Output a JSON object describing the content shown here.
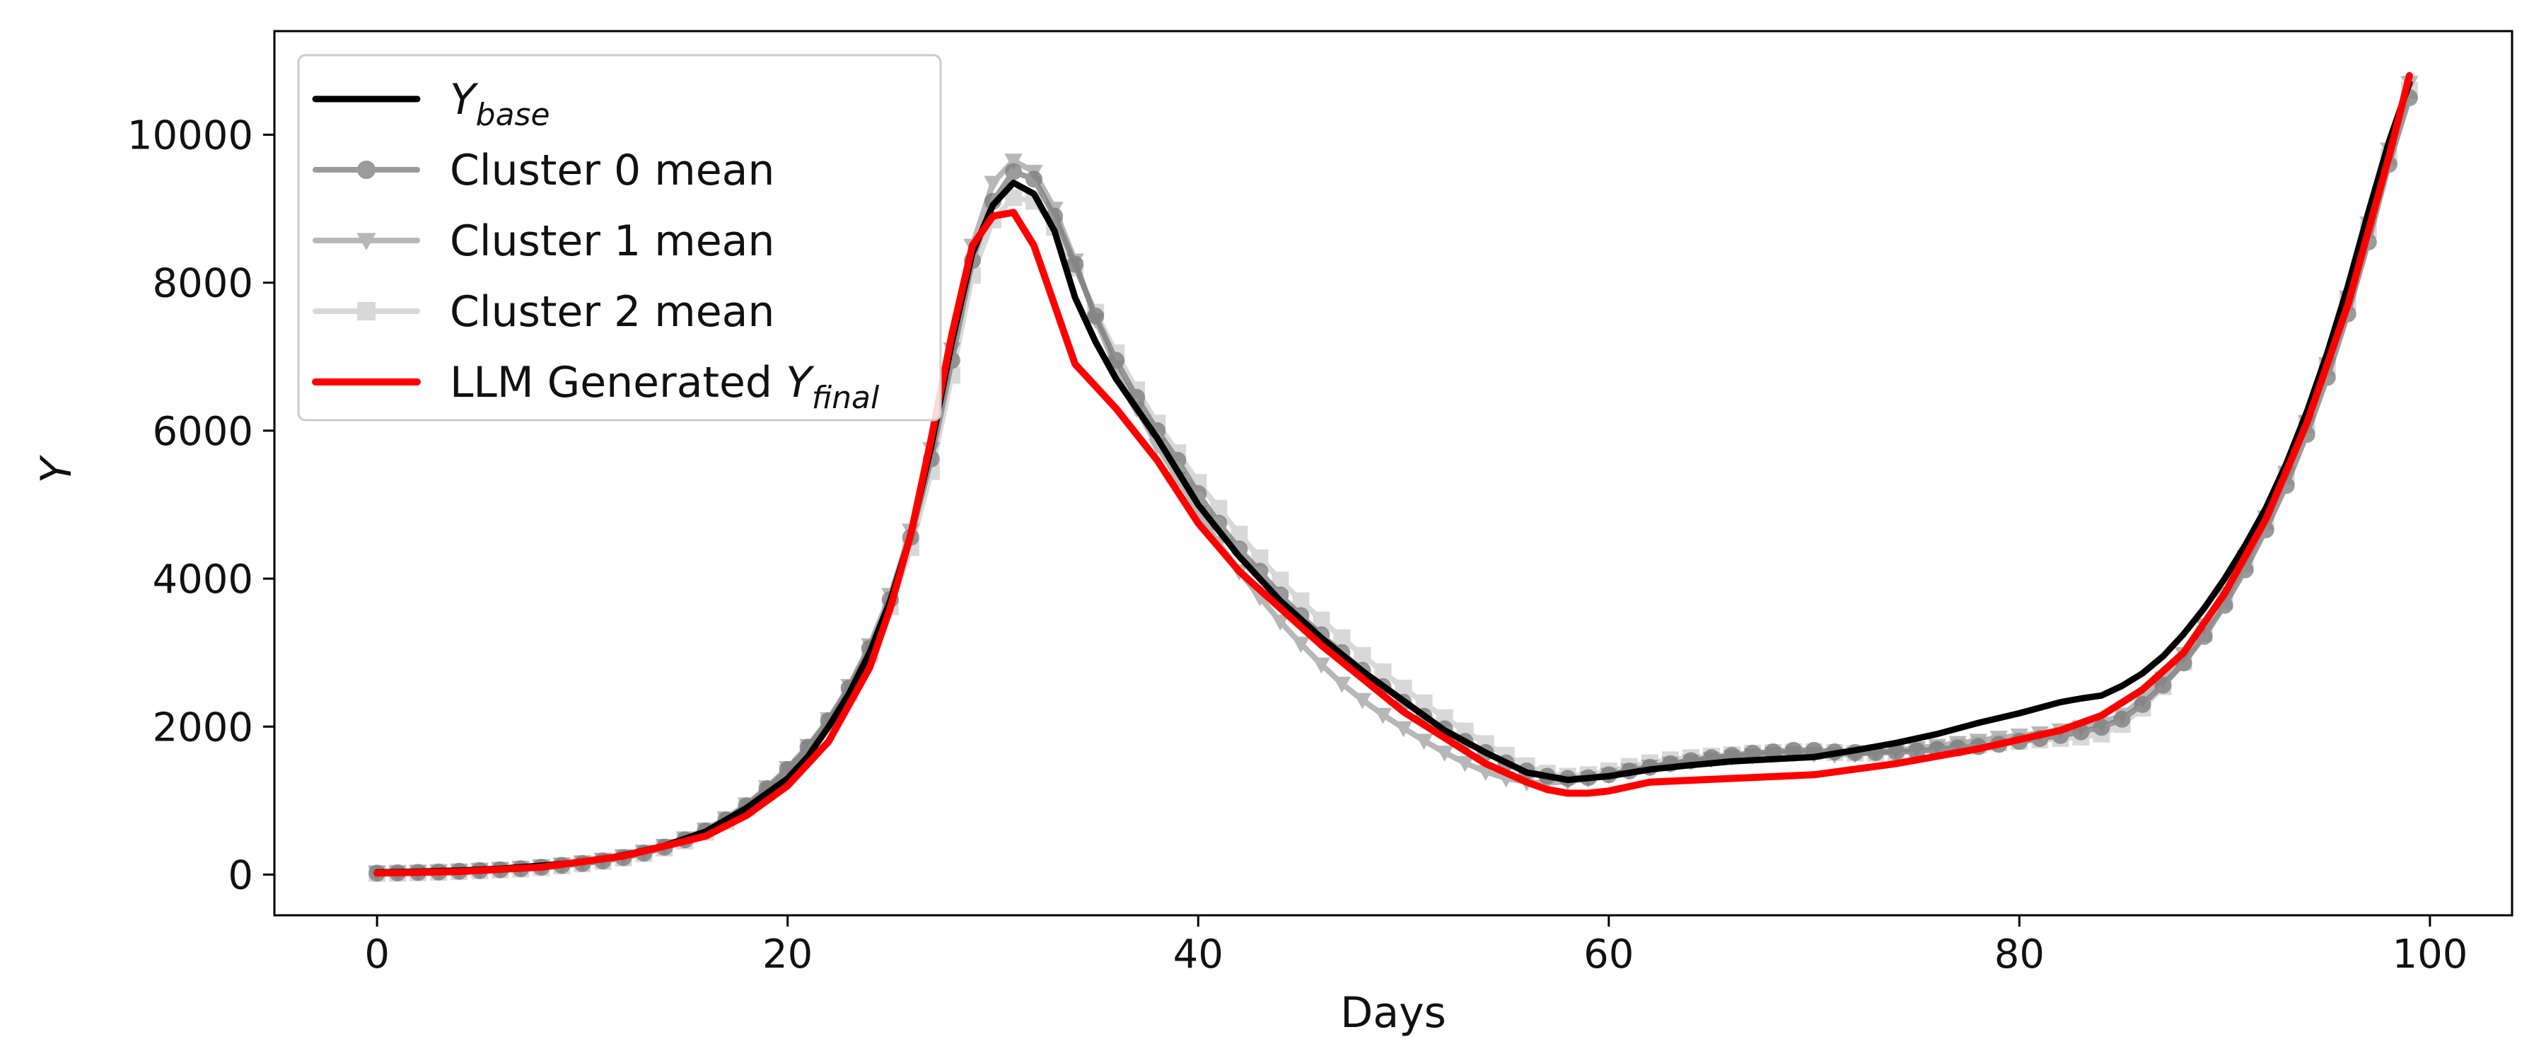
{
  "chart_data": {
    "type": "line",
    "title": "",
    "xlabel": "Days",
    "ylabel": "Y",
    "xlim": [
      -5,
      104
    ],
    "ylim": [
      -550,
      11400
    ],
    "xticks": [
      0,
      20,
      40,
      60,
      80,
      100
    ],
    "yticks": [
      0,
      2000,
      4000,
      6000,
      8000,
      10000
    ],
    "grid": false,
    "legend_position": "top-left",
    "colors": {
      "base": "#000000",
      "cluster0": "#7a7a7a",
      "cluster1": "#9a9a9a",
      "cluster2": "#c4c4c4",
      "llm": "#ff0000"
    },
    "legend": [
      {
        "key": "base",
        "main": "Y",
        "sub": "base"
      },
      {
        "key": "cluster0",
        "main": "Cluster 0 mean",
        "sub": ""
      },
      {
        "key": "cluster1",
        "main": "Cluster 1 mean",
        "sub": ""
      },
      {
        "key": "cluster2",
        "main": "Cluster 2 mean",
        "sub": ""
      },
      {
        "key": "llm",
        "main": "LLM Generated Y",
        "sub": "final"
      }
    ],
    "series": [
      {
        "key": "base",
        "name": "Y_base",
        "marker": "none",
        "x": [
          0,
          2,
          4,
          6,
          8,
          10,
          12,
          14,
          16,
          18,
          20,
          21,
          22,
          23,
          24,
          25,
          26,
          27,
          28,
          29,
          30,
          31,
          32,
          33,
          34,
          35,
          36,
          37,
          38,
          39,
          40,
          42,
          44,
          46,
          48,
          50,
          52,
          54,
          56,
          58,
          60,
          62,
          64,
          66,
          68,
          70,
          72,
          74,
          76,
          78,
          80,
          82,
          83,
          84,
          85,
          86,
          87,
          88,
          89,
          90,
          91,
          92,
          93,
          94,
          95,
          96,
          97,
          98,
          99
        ],
        "y": [
          30,
          40,
          55,
          80,
          120,
          170,
          260,
          390,
          580,
          900,
          1300,
          1600,
          2000,
          2450,
          3000,
          3700,
          4600,
          5800,
          7200,
          8400,
          9050,
          9350,
          9200,
          8700,
          7800,
          7200,
          6700,
          6300,
          5900,
          5450,
          5000,
          4300,
          3700,
          3200,
          2750,
          2350,
          1950,
          1650,
          1380,
          1280,
          1330,
          1420,
          1480,
          1530,
          1560,
          1590,
          1680,
          1780,
          1900,
          2050,
          2180,
          2330,
          2380,
          2420,
          2550,
          2720,
          2950,
          3250,
          3600,
          4000,
          4450,
          4950,
          5550,
          6250,
          7050,
          7950,
          8950,
          9900,
          10700
        ]
      },
      {
        "key": "cluster0",
        "name": "Cluster 0 mean",
        "marker": "circle",
        "x": [
          0,
          1,
          2,
          3,
          4,
          5,
          6,
          7,
          8,
          9,
          10,
          11,
          12,
          13,
          14,
          15,
          16,
          17,
          18,
          19,
          20,
          21,
          22,
          23,
          24,
          25,
          26,
          27,
          28,
          29,
          30,
          31,
          32,
          33,
          34,
          35,
          36,
          37,
          38,
          39,
          40,
          41,
          42,
          43,
          44,
          45,
          46,
          47,
          48,
          49,
          50,
          51,
          52,
          53,
          54,
          55,
          56,
          57,
          58,
          59,
          60,
          61,
          62,
          63,
          64,
          65,
          66,
          67,
          68,
          69,
          70,
          71,
          72,
          73,
          74,
          75,
          76,
          77,
          78,
          79,
          80,
          81,
          82,
          83,
          84,
          85,
          86,
          87,
          88,
          89,
          90,
          91,
          92,
          93,
          94,
          95,
          96,
          97,
          98,
          99
        ],
        "y": [
          20,
          24,
          30,
          36,
          45,
          55,
          66,
          80,
          100,
          125,
          150,
          185,
          230,
          290,
          370,
          470,
          590,
          740,
          930,
          1160,
          1420,
          1720,
          2080,
          2520,
          3060,
          3720,
          4560,
          5620,
          6950,
          8300,
          9100,
          9500,
          9400,
          8900,
          8250,
          7550,
          6950,
          6450,
          6000,
          5600,
          5150,
          4750,
          4400,
          4100,
          3780,
          3500,
          3240,
          3000,
          2760,
          2540,
          2330,
          2140,
          1970,
          1800,
          1650,
          1510,
          1400,
          1330,
          1300,
          1310,
          1350,
          1400,
          1450,
          1500,
          1540,
          1580,
          1610,
          1640,
          1660,
          1680,
          1680,
          1660,
          1650,
          1650,
          1660,
          1670,
          1690,
          1710,
          1730,
          1760,
          1800,
          1840,
          1880,
          1930,
          1990,
          2100,
          2300,
          2560,
          2860,
          3220,
          3640,
          4120,
          4660,
          5260,
          5950,
          6720,
          7580,
          8550,
          9600,
          10500
        ]
      },
      {
        "key": "cluster1",
        "name": "Cluster 1 mean",
        "marker": "triangle",
        "x": [
          0,
          1,
          2,
          3,
          4,
          5,
          6,
          7,
          8,
          9,
          10,
          11,
          12,
          13,
          14,
          15,
          16,
          17,
          18,
          19,
          20,
          21,
          22,
          23,
          24,
          25,
          26,
          27,
          28,
          29,
          30,
          31,
          32,
          33,
          34,
          35,
          36,
          37,
          38,
          39,
          40,
          41,
          42,
          43,
          44,
          45,
          46,
          47,
          48,
          49,
          50,
          51,
          52,
          53,
          54,
          55,
          56,
          57,
          58,
          59,
          60,
          61,
          62,
          63,
          64,
          65,
          66,
          67,
          68,
          69,
          70,
          71,
          72,
          73,
          74,
          75,
          76,
          77,
          78,
          79,
          80,
          81,
          82,
          83,
          84,
          85,
          86,
          87,
          88,
          89,
          90,
          91,
          92,
          93,
          94,
          95,
          96,
          97,
          98,
          99
        ],
        "y": [
          25,
          28,
          34,
          40,
          50,
          60,
          72,
          88,
          110,
          135,
          165,
          200,
          250,
          310,
          390,
          490,
          610,
          760,
          950,
          1180,
          1440,
          1740,
          2100,
          2550,
          3100,
          3780,
          4650,
          5750,
          7100,
          8500,
          9350,
          9650,
          9500,
          9000,
          8300,
          7500,
          6850,
          6300,
          5800,
          5350,
          4900,
          4480,
          4100,
          3750,
          3420,
          3120,
          2840,
          2580,
          2360,
          2160,
          1980,
          1810,
          1650,
          1510,
          1390,
          1300,
          1250,
          1240,
          1260,
          1300,
          1350,
          1410,
          1460,
          1500,
          1530,
          1560,
          1590,
          1610,
          1630,
          1640,
          1630,
          1620,
          1630,
          1650,
          1680,
          1710,
          1740,
          1780,
          1810,
          1850,
          1880,
          1910,
          1950,
          1990,
          2040,
          2160,
          2370,
          2650,
          2980,
          3370,
          3800,
          4290,
          4830,
          5430,
          6120,
          6900,
          7800,
          8800,
          9800,
          10700
        ]
      },
      {
        "key": "cluster2",
        "name": "Cluster 2 mean",
        "marker": "square",
        "x": [
          0,
          1,
          2,
          3,
          4,
          5,
          6,
          7,
          8,
          9,
          10,
          11,
          12,
          13,
          14,
          15,
          16,
          17,
          18,
          19,
          20,
          21,
          22,
          23,
          24,
          25,
          26,
          27,
          28,
          29,
          30,
          31,
          32,
          33,
          34,
          35,
          36,
          37,
          38,
          39,
          40,
          41,
          42,
          43,
          44,
          45,
          46,
          47,
          48,
          49,
          50,
          51,
          52,
          53,
          54,
          55,
          56,
          57,
          58,
          59,
          60,
          61,
          62,
          63,
          64,
          65,
          66,
          67,
          68,
          69,
          70,
          71,
          72,
          73,
          74,
          75,
          76,
          77,
          78,
          79,
          80,
          81,
          82,
          83,
          84,
          85,
          86,
          87,
          88,
          89,
          90,
          91,
          92,
          93,
          94,
          95,
          96,
          97,
          98,
          99
        ],
        "y": [
          15,
          20,
          25,
          32,
          40,
          50,
          62,
          76,
          95,
          118,
          145,
          180,
          225,
          285,
          360,
          455,
          575,
          720,
          900,
          1120,
          1380,
          1680,
          2040,
          2460,
          2980,
          3620,
          4420,
          5450,
          6750,
          8100,
          8850,
          9150,
          9100,
          8750,
          8200,
          7600,
          7050,
          6550,
          6100,
          5700,
          5300,
          4950,
          4600,
          4280,
          3980,
          3700,
          3440,
          3200,
          2960,
          2740,
          2520,
          2320,
          2120,
          1940,
          1770,
          1610,
          1470,
          1370,
          1330,
          1350,
          1400,
          1460,
          1510,
          1550,
          1580,
          1600,
          1620,
          1640,
          1650,
          1660,
          1660,
          1650,
          1640,
          1640,
          1650,
          1670,
          1690,
          1720,
          1750,
          1780,
          1800,
          1820,
          1840,
          1860,
          1900,
          2030,
          2250,
          2540,
          2870,
          3260,
          3700,
          4200,
          4760,
          5380,
          6080,
          6860,
          7740,
          8720,
          9700,
          10600
        ]
      },
      {
        "key": "llm",
        "name": "LLM Generated Y_final",
        "marker": "none",
        "x": [
          0,
          4,
          8,
          12,
          16,
          18,
          20,
          22,
          24,
          25,
          26,
          27,
          28,
          29,
          30,
          31,
          32,
          34,
          36,
          38,
          40,
          42,
          44,
          46,
          48,
          50,
          52,
          54,
          56,
          57,
          58,
          59,
          60,
          62,
          66,
          70,
          74,
          78,
          82,
          84,
          86,
          88,
          90,
          92,
          94,
          96,
          98,
          99
        ],
        "y": [
          20,
          40,
          100,
          250,
          520,
          800,
          1200,
          1800,
          2800,
          3600,
          4600,
          5900,
          7300,
          8500,
          8900,
          8950,
          8500,
          6900,
          6300,
          5600,
          4750,
          4100,
          3600,
          3100,
          2650,
          2200,
          1850,
          1500,
          1250,
          1150,
          1100,
          1100,
          1130,
          1250,
          1300,
          1350,
          1500,
          1700,
          1950,
          2150,
          2500,
          3000,
          3800,
          4800,
          6100,
          7700,
          9700,
          10800
        ]
      }
    ]
  }
}
